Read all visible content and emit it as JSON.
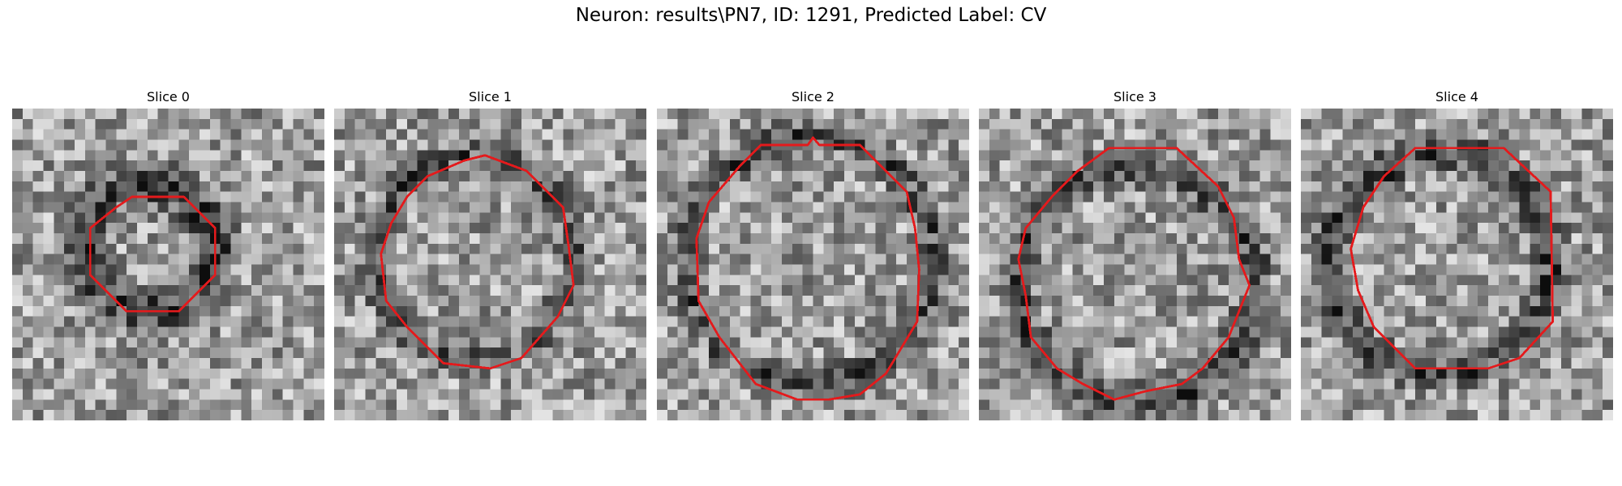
{
  "figure": {
    "title": "Neuron: results\\PN7, ID: 1291, Predicted Label: CV"
  },
  "panels": [
    {
      "title": "Slice 0",
      "dark_ring": 0.42,
      "ring_width": 0.1,
      "noise_seed": 11
    },
    {
      "title": "Slice 1",
      "dark_ring": 0.32,
      "ring_width": 0.07,
      "noise_seed": 23
    },
    {
      "title": "Slice 2",
      "dark_ring": 0.34,
      "ring_width": 0.07,
      "noise_seed": 37
    },
    {
      "title": "Slice 3",
      "dark_ring": 0.38,
      "ring_width": 0.08,
      "noise_seed": 51
    },
    {
      "title": "Slice 4",
      "dark_ring": 0.38,
      "ring_width": 0.08,
      "noise_seed": 67
    }
  ],
  "contour_color": "#e41a1c",
  "colormap": "gray"
}
